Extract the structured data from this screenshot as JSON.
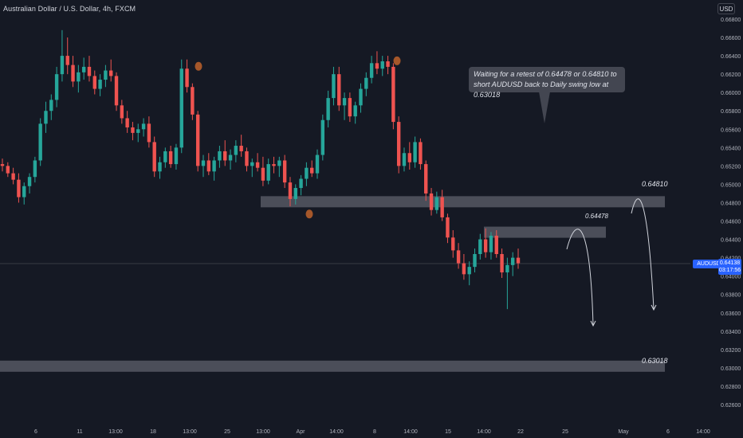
{
  "header": {
    "title": "Australian Dollar / U.S. Dollar, 4h, FXCM"
  },
  "currency_button": "USD",
  "note": {
    "line1": "Waiting for a retest of 0.64478 or 0.64810 to",
    "line2": "short AUDUSD back to Daily swing low at 0.63018"
  },
  "level_labels": {
    "upper": "0.64810",
    "middle": "0.64478",
    "lower": "0.63018"
  },
  "current_price": {
    "symbol": "AUDUSD",
    "price": "0.64138",
    "countdown": "03:17:56"
  },
  "colors": {
    "background": "#151924",
    "bull": "#26a69a",
    "bear": "#ef5350",
    "zone": "#5d606b",
    "swing_marker": "#a5572a",
    "accent": "#2962ff"
  },
  "chart_data": {
    "type": "candlestick",
    "title": "Australian Dollar / U.S. Dollar, 4h, FXCM",
    "ylim": [
      0.6258,
      0.6692
    ],
    "y_ticks": [
      "0.66800",
      "0.66600",
      "0.66400",
      "0.66200",
      "0.66000",
      "0.65800",
      "0.65600",
      "0.65400",
      "0.65200",
      "0.65000",
      "0.64800",
      "0.64600",
      "0.64400",
      "0.64200",
      "0.64000",
      "0.63800",
      "0.63600",
      "0.63400",
      "0.63200",
      "0.63000",
      "0.62800",
      "0.62600"
    ],
    "x_ticks": [
      "6",
      "11",
      "13:00",
      "18",
      "13:00",
      "25",
      "13:00",
      "Apr",
      "14:00",
      "8",
      "14:00",
      "15",
      "14:00",
      "22",
      "25",
      "May",
      "6",
      "14:00"
    ],
    "current_price": 0.64138,
    "zones": [
      {
        "name": "resistance-zone",
        "value": 0.6481,
        "label": "0.64810"
      },
      {
        "name": "retest-zone",
        "value": 0.64478,
        "label": "0.64478"
      },
      {
        "name": "daily-swing-low-zone",
        "value": 0.63018,
        "label": "0.63018"
      }
    ],
    "swing_markers": [
      0.6639,
      0.6645,
      0.6478
    ],
    "candles": [
      [
        0.6522,
        0.6528,
        0.6514,
        0.652
      ],
      [
        0.652,
        0.6524,
        0.6508,
        0.6512
      ],
      [
        0.6512,
        0.6518,
        0.65,
        0.6505
      ],
      [
        0.6505,
        0.6512,
        0.648,
        0.6486
      ],
      [
        0.6486,
        0.6502,
        0.6478,
        0.6498
      ],
      [
        0.6498,
        0.6512,
        0.649,
        0.6508
      ],
      [
        0.6508,
        0.653,
        0.6502,
        0.6526
      ],
      [
        0.6526,
        0.6572,
        0.652,
        0.6566
      ],
      [
        0.6566,
        0.659,
        0.6556,
        0.658
      ],
      [
        0.658,
        0.6598,
        0.657,
        0.6592
      ],
      [
        0.6592,
        0.6628,
        0.6584,
        0.662
      ],
      [
        0.662,
        0.6668,
        0.6612,
        0.664
      ],
      [
        0.664,
        0.666,
        0.662,
        0.663
      ],
      [
        0.663,
        0.664,
        0.6606,
        0.6612
      ],
      [
        0.6612,
        0.663,
        0.66,
        0.6622
      ],
      [
        0.6622,
        0.6638,
        0.6614,
        0.6628
      ],
      [
        0.6628,
        0.664,
        0.6612,
        0.6618
      ],
      [
        0.6618,
        0.6624,
        0.6598,
        0.6604
      ],
      [
        0.6604,
        0.662,
        0.6596,
        0.6614
      ],
      [
        0.6614,
        0.663,
        0.6606,
        0.6624
      ],
      [
        0.6624,
        0.6636,
        0.6612,
        0.6618
      ],
      [
        0.6618,
        0.6622,
        0.658,
        0.6586
      ],
      [
        0.6586,
        0.6592,
        0.6566,
        0.6572
      ],
      [
        0.6572,
        0.658,
        0.6556,
        0.6562
      ],
      [
        0.6562,
        0.6568,
        0.6548,
        0.6556
      ],
      [
        0.6556,
        0.6566,
        0.6546,
        0.656
      ],
      [
        0.656,
        0.6572,
        0.6552,
        0.6566
      ],
      [
        0.6566,
        0.6574,
        0.654,
        0.6546
      ],
      [
        0.6546,
        0.6552,
        0.6508,
        0.6514
      ],
      [
        0.6514,
        0.653,
        0.6506,
        0.6524
      ],
      [
        0.6524,
        0.654,
        0.6518,
        0.6536
      ],
      [
        0.6536,
        0.6542,
        0.6518,
        0.6522
      ],
      [
        0.6522,
        0.6544,
        0.6516,
        0.654
      ],
      [
        0.654,
        0.6636,
        0.6534,
        0.6626
      ],
      [
        0.6626,
        0.6636,
        0.66,
        0.6606
      ],
      [
        0.6606,
        0.661,
        0.657,
        0.6576
      ],
      [
        0.6576,
        0.658,
        0.6514,
        0.652
      ],
      [
        0.652,
        0.6532,
        0.6508,
        0.6526
      ],
      [
        0.6526,
        0.6534,
        0.651,
        0.6514
      ],
      [
        0.6514,
        0.653,
        0.6504,
        0.6526
      ],
      [
        0.6526,
        0.6542,
        0.6518,
        0.6536
      ],
      [
        0.6536,
        0.6548,
        0.652,
        0.6526
      ],
      [
        0.6526,
        0.6538,
        0.6516,
        0.6532
      ],
      [
        0.6532,
        0.6548,
        0.6524,
        0.6542
      ],
      [
        0.6542,
        0.6554,
        0.653,
        0.6536
      ],
      [
        0.6536,
        0.654,
        0.6514,
        0.652
      ],
      [
        0.652,
        0.6528,
        0.6508,
        0.6524
      ],
      [
        0.6524,
        0.6534,
        0.6514,
        0.6518
      ],
      [
        0.6518,
        0.653,
        0.6498,
        0.6504
      ],
      [
        0.6504,
        0.6528,
        0.65,
        0.6522
      ],
      [
        0.6522,
        0.653,
        0.6512,
        0.652
      ],
      [
        0.652,
        0.653,
        0.6508,
        0.6526
      ],
      [
        0.6526,
        0.6532,
        0.6496,
        0.6502
      ],
      [
        0.6502,
        0.6508,
        0.6476,
        0.6484
      ],
      [
        0.6484,
        0.65,
        0.6478,
        0.6496
      ],
      [
        0.6496,
        0.651,
        0.6488,
        0.6506
      ],
      [
        0.6506,
        0.6524,
        0.6498,
        0.6518
      ],
      [
        0.6518,
        0.6526,
        0.6508,
        0.6512
      ],
      [
        0.6512,
        0.6538,
        0.6506,
        0.6532
      ],
      [
        0.6532,
        0.6576,
        0.6526,
        0.657
      ],
      [
        0.657,
        0.6602,
        0.6562,
        0.6594
      ],
      [
        0.6594,
        0.6628,
        0.6586,
        0.662
      ],
      [
        0.662,
        0.6628,
        0.658,
        0.6586
      ],
      [
        0.6586,
        0.66,
        0.657,
        0.6594
      ],
      [
        0.6594,
        0.66,
        0.6568,
        0.6574
      ],
      [
        0.6574,
        0.659,
        0.6566,
        0.6586
      ],
      [
        0.6586,
        0.661,
        0.6578,
        0.6604
      ],
      [
        0.6604,
        0.6622,
        0.6596,
        0.6616
      ],
      [
        0.6616,
        0.664,
        0.661,
        0.6632
      ],
      [
        0.6632,
        0.6645,
        0.662,
        0.6626
      ],
      [
        0.6626,
        0.664,
        0.6618,
        0.6634
      ],
      [
        0.6634,
        0.664,
        0.662,
        0.6628
      ],
      [
        0.6628,
        0.6632,
        0.656,
        0.6568
      ],
      [
        0.6568,
        0.6574,
        0.6512,
        0.652
      ],
      [
        0.652,
        0.654,
        0.6514,
        0.6534
      ],
      [
        0.6534,
        0.6546,
        0.6516,
        0.6524
      ],
      [
        0.6524,
        0.6552,
        0.6518,
        0.6546
      ],
      [
        0.6546,
        0.655,
        0.6516,
        0.6522
      ],
      [
        0.6522,
        0.6526,
        0.6482,
        0.649
      ],
      [
        0.649,
        0.6496,
        0.6466,
        0.6472
      ],
      [
        0.6472,
        0.6492,
        0.6468,
        0.6486
      ],
      [
        0.6486,
        0.6494,
        0.646,
        0.6464
      ],
      [
        0.6464,
        0.6468,
        0.6436,
        0.6442
      ],
      [
        0.6442,
        0.645,
        0.642,
        0.6428
      ],
      [
        0.6428,
        0.6436,
        0.6408,
        0.6414
      ],
      [
        0.6414,
        0.6424,
        0.6396,
        0.6402
      ],
      [
        0.6402,
        0.6416,
        0.639,
        0.641
      ],
      [
        0.641,
        0.643,
        0.6404,
        0.6424
      ],
      [
        0.6424,
        0.6446,
        0.6418,
        0.644
      ],
      [
        0.644,
        0.6452,
        0.642,
        0.6426
      ],
      [
        0.6426,
        0.6448,
        0.6418,
        0.6444
      ],
      [
        0.6444,
        0.645,
        0.642,
        0.6424
      ],
      [
        0.6424,
        0.643,
        0.6398,
        0.6404
      ],
      [
        0.6404,
        0.642,
        0.6364,
        0.6412
      ],
      [
        0.6412,
        0.6426,
        0.64,
        0.642
      ],
      [
        0.642,
        0.643,
        0.6408,
        0.6414
      ]
    ]
  }
}
